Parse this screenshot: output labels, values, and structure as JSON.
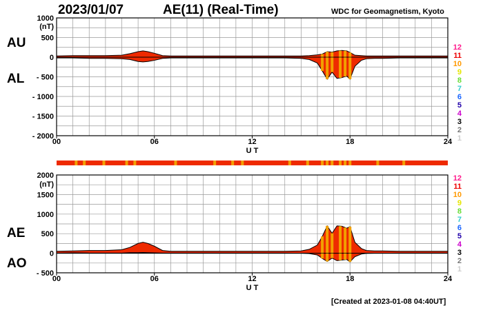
{
  "header": {
    "date": "2023/01/07",
    "title": "AE(11) (Real-Time)",
    "source": "WDC for Geomagnetism, Kyoto"
  },
  "footer": {
    "created": "[Created at 2023-01-08 04:40UT]"
  },
  "colors": {
    "index_fill": "#ee2a00",
    "stripe_highlight": "#f2a000",
    "grid": "#999999"
  },
  "station_levels": {
    "labels": [
      "12",
      "11",
      "10",
      "9",
      "8",
      "7",
      "6",
      "5",
      "4",
      "3",
      "2",
      "1"
    ],
    "colors": [
      "#ff1a8c",
      "#ee0000",
      "#ff9900",
      "#e6e600",
      "#66dd33",
      "#33cccc",
      "#1a66ff",
      "#2200aa",
      "#cc00cc",
      "#000000",
      "#777777",
      "#cccccc"
    ]
  },
  "station_count_strip": {
    "base_color": "#ee2a00",
    "highlight_color": "#f2a000",
    "highlight_hours": [
      1.2,
      1.7,
      2.9,
      4.3,
      4.8,
      7.3,
      9.7,
      10.8,
      11.4,
      14.3,
      15.4,
      16.3,
      16.6,
      16.9,
      17.4,
      17.7,
      18.0,
      19.7,
      21.3
    ]
  },
  "chart_data": [
    {
      "type": "area",
      "panel": "AU / AL",
      "series_labels": [
        "AU",
        "AL"
      ],
      "unit": "(nT)",
      "xlabel": "U T",
      "x_ticks": [
        "00",
        "06",
        "12",
        "18",
        "24"
      ],
      "xlim": [
        0,
        24
      ],
      "y_ticks": [
        "1000",
        "500",
        "0",
        "- 500",
        "- 1000",
        "- 1500",
        "- 2000"
      ],
      "ylim": [
        -2000,
        1000
      ],
      "grid": true,
      "x_hours": [
        0,
        1,
        2,
        3,
        4,
        4.5,
        5,
        5.3,
        5.6,
        6,
        6.5,
        7,
        8,
        9,
        10,
        11,
        12,
        13,
        14,
        15,
        15.5,
        16,
        16.3,
        16.6,
        16.9,
        17.2,
        17.5,
        17.8,
        18,
        18.3,
        18.7,
        19,
        19.5,
        20,
        21,
        22,
        23,
        24
      ],
      "AU": [
        30,
        40,
        40,
        40,
        50,
        90,
        140,
        160,
        140,
        100,
        40,
        30,
        30,
        30,
        30,
        30,
        30,
        30,
        30,
        30,
        40,
        60,
        80,
        140,
        130,
        160,
        170,
        160,
        120,
        50,
        40,
        30,
        30,
        30,
        30,
        30,
        30,
        30
      ],
      "AL": [
        -20,
        -20,
        -30,
        -30,
        -40,
        -60,
        -110,
        -120,
        -110,
        -80,
        -30,
        -20,
        -20,
        -20,
        -20,
        -20,
        -20,
        -20,
        -20,
        -30,
        -60,
        -150,
        -350,
        -560,
        -380,
        -540,
        -520,
        -480,
        -560,
        -230,
        -80,
        -40,
        -30,
        -30,
        -20,
        -20,
        -20,
        -20
      ]
    },
    {
      "type": "area",
      "panel": "AE / AO",
      "series_labels": [
        "AE",
        "AO"
      ],
      "unit": "(nT)",
      "xlabel": "U T",
      "x_ticks": [
        "00",
        "06",
        "12",
        "18",
        "24"
      ],
      "xlim": [
        0,
        24
      ],
      "y_ticks": [
        "2000",
        "1500",
        "1000",
        "500",
        "0",
        "- 500"
      ],
      "ylim": [
        -500,
        2000
      ],
      "grid": true,
      "x_hours": [
        0,
        1,
        2,
        3,
        4,
        4.5,
        5,
        5.3,
        5.6,
        6,
        6.5,
        7,
        8,
        9,
        10,
        11,
        12,
        13,
        14,
        15,
        15.5,
        16,
        16.3,
        16.6,
        16.9,
        17.2,
        17.5,
        17.8,
        18,
        18.3,
        18.7,
        19,
        19.5,
        20,
        21,
        22,
        23,
        24
      ],
      "AE": [
        50,
        60,
        70,
        70,
        90,
        150,
        250,
        280,
        250,
        180,
        70,
        50,
        50,
        50,
        50,
        50,
        50,
        50,
        50,
        60,
        100,
        210,
        430,
        700,
        510,
        700,
        690,
        640,
        680,
        280,
        120,
        70,
        60,
        60,
        50,
        50,
        50,
        50
      ],
      "AO": [
        5,
        10,
        5,
        5,
        5,
        15,
        15,
        20,
        15,
        10,
        5,
        5,
        5,
        5,
        5,
        5,
        5,
        5,
        5,
        0,
        -10,
        -45,
        -135,
        -210,
        -125,
        -190,
        -175,
        -160,
        -220,
        -90,
        -20,
        -5,
        0,
        0,
        5,
        5,
        5,
        5
      ]
    }
  ]
}
